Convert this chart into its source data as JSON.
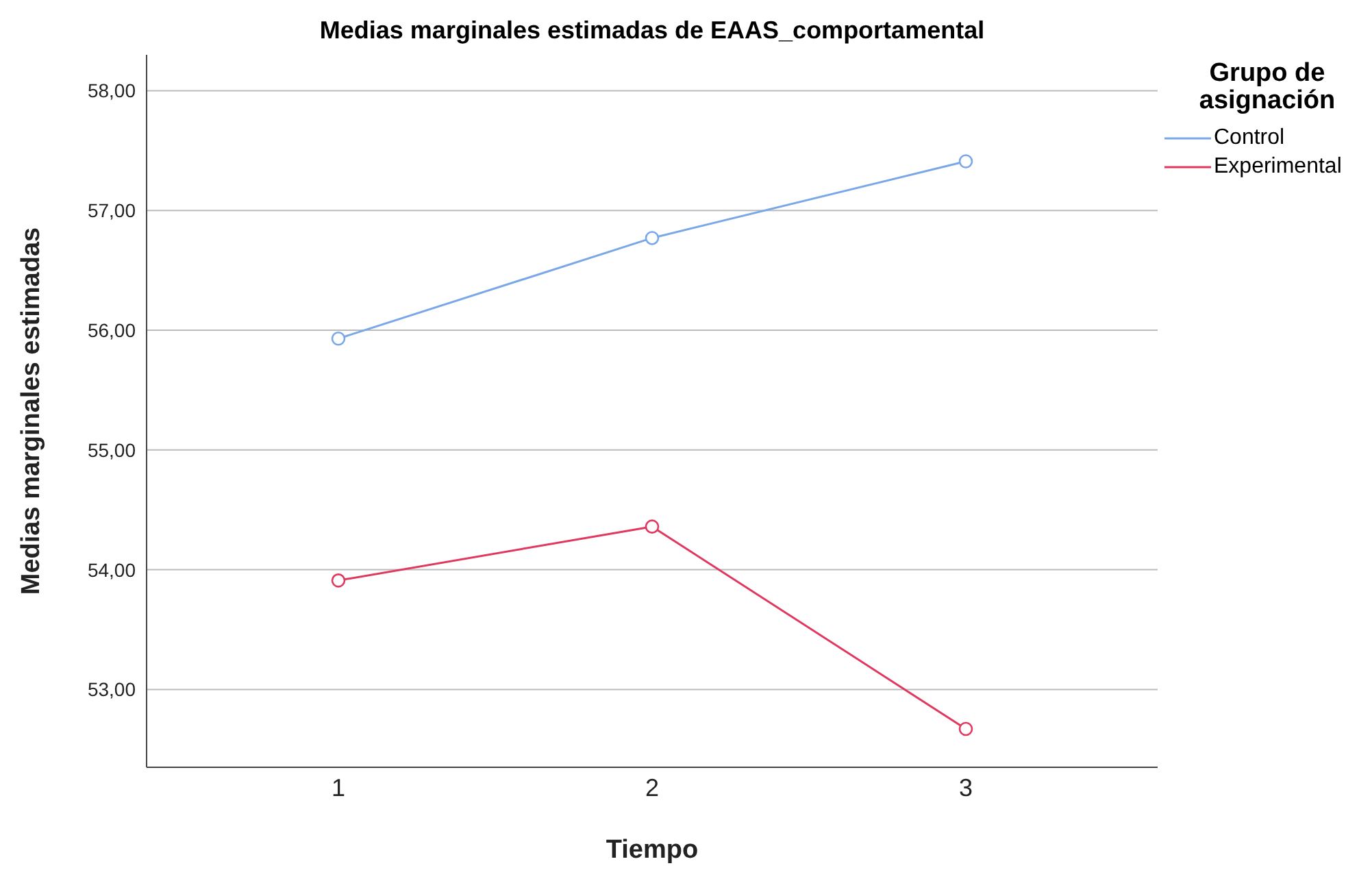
{
  "chart_data": {
    "type": "line",
    "title": "Medias marginales estimadas de EAAS_comportamental",
    "xlabel": "Tiempo",
    "ylabel": "Medias marginales estimadas",
    "legend_title": "Grupo de asignación",
    "categories": [
      "1",
      "2",
      "3"
    ],
    "series": [
      {
        "name": "Control",
        "color": "#7aa7e8",
        "values": [
          55.93,
          56.77,
          57.41
        ]
      },
      {
        "name": "Experimental",
        "color": "#e0385f",
        "values": [
          53.91,
          54.36,
          52.67
        ]
      }
    ],
    "ylim": [
      52.35,
      58.3
    ],
    "yticks": [
      {
        "value": 53,
        "label": "53,00"
      },
      {
        "value": 54,
        "label": "54,00"
      },
      {
        "value": 55,
        "label": "55,00"
      },
      {
        "value": 56,
        "label": "56,00"
      },
      {
        "value": 57,
        "label": "57,00"
      },
      {
        "value": 58,
        "label": "58,00"
      }
    ],
    "grid": "y",
    "legend": "top right",
    "marker": "circle",
    "line_style": "solid"
  }
}
